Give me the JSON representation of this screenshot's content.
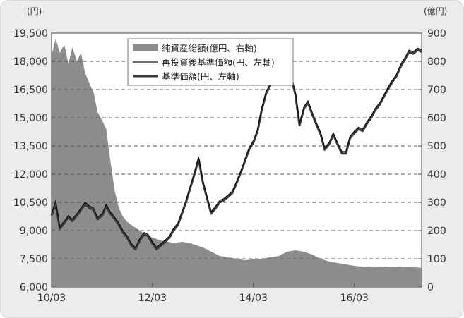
{
  "chart_data": {
    "type": "area+line",
    "title": "",
    "left_axis": {
      "unit": "(円)",
      "ticks": [
        6000,
        7500,
        9000,
        10500,
        12000,
        13500,
        15000,
        16500,
        18000,
        19500
      ],
      "tick_labels": [
        "6,000",
        "7,500",
        "9,000",
        "10,500",
        "12,000",
        "13,500",
        "15,000",
        "16,500",
        "18,000",
        "19,500"
      ],
      "range": [
        6000,
        19500
      ]
    },
    "right_axis": {
      "unit": "(億円)",
      "ticks": [
        0,
        100,
        200,
        300,
        400,
        500,
        600,
        700,
        800,
        900
      ],
      "tick_labels": [
        "0",
        "100",
        "200",
        "300",
        "400",
        "500",
        "600",
        "700",
        "800",
        "900"
      ],
      "range": [
        0,
        900
      ]
    },
    "x_axis": {
      "ticks": [
        2010.167,
        2012.167,
        2014.167,
        2016.167
      ],
      "tick_labels": [
        "10/03",
        "12/03",
        "14/03",
        "16/03"
      ],
      "range": [
        2010.167,
        2017.5
      ]
    },
    "grid": "horizontal dashed",
    "legend_position": "top-center",
    "series": [
      {
        "name": "純資産総額(億円、右軸)",
        "kind": "area",
        "axis": "right",
        "color": "#8c8c8c",
        "x": [
          2010.167,
          2010.25,
          2010.33,
          2010.42,
          2010.5,
          2010.58,
          2010.67,
          2010.75,
          2010.83,
          2010.92,
          2011.0,
          2011.08,
          2011.17,
          2011.25,
          2011.33,
          2011.42,
          2011.5,
          2011.58,
          2011.67,
          2011.75,
          2011.83,
          2011.92,
          2012.0,
          2012.08,
          2012.167,
          2012.25,
          2012.33,
          2012.42,
          2012.5,
          2012.58,
          2012.67,
          2012.75,
          2012.83,
          2012.92,
          2013.0,
          2013.17,
          2013.33,
          2013.5,
          2013.67,
          2013.83,
          2014.0,
          2014.17,
          2014.33,
          2014.5,
          2014.67,
          2014.83,
          2015.0,
          2015.17,
          2015.33,
          2015.5,
          2015.67,
          2015.83,
          2016.0,
          2016.17,
          2016.33,
          2016.5,
          2016.67,
          2016.83,
          2017.0,
          2017.17,
          2017.33,
          2017.5
        ],
        "values": [
          820,
          880,
          830,
          860,
          790,
          850,
          800,
          830,
          760,
          720,
          690,
          620,
          590,
          560,
          450,
          340,
          280,
          250,
          230,
          220,
          210,
          200,
          190,
          185,
          175,
          170,
          165,
          160,
          160,
          155,
          158,
          160,
          158,
          155,
          150,
          140,
          125,
          110,
          105,
          100,
          95,
          98,
          100,
          105,
          110,
          125,
          130,
          125,
          115,
          100,
          90,
          85,
          80,
          75,
          72,
          70,
          72,
          70,
          70,
          72,
          70,
          68
        ]
      },
      {
        "name": "再投資後基準価額(円、左軸)",
        "kind": "line",
        "axis": "left",
        "color": "#111111",
        "x": [
          2010.167,
          2010.25,
          2010.33,
          2010.42,
          2010.5,
          2010.58,
          2010.67,
          2010.75,
          2010.83,
          2010.92,
          2011.0,
          2011.08,
          2011.17,
          2011.25,
          2011.33,
          2011.42,
          2011.5,
          2011.58,
          2011.67,
          2011.75,
          2011.83,
          2011.92,
          2012.0,
          2012.08,
          2012.167,
          2012.25,
          2012.33,
          2012.42,
          2012.5,
          2012.58,
          2012.67,
          2012.75,
          2012.83,
          2012.92,
          2013.0,
          2013.08,
          2013.17,
          2013.25,
          2013.33,
          2013.42,
          2013.5,
          2013.58,
          2013.67,
          2013.75,
          2013.83,
          2013.92,
          2014.0,
          2014.08,
          2014.17,
          2014.25,
          2014.33,
          2014.42,
          2014.5,
          2014.58,
          2014.67,
          2014.75,
          2014.83,
          2014.92,
          2015.0,
          2015.08,
          2015.17,
          2015.25,
          2015.33,
          2015.42,
          2015.5,
          2015.58,
          2015.67,
          2015.75,
          2015.83,
          2015.92,
          2016.0,
          2016.08,
          2016.17,
          2016.25,
          2016.33,
          2016.42,
          2016.5,
          2016.58,
          2016.67,
          2016.75,
          2016.83,
          2016.92,
          2017.0,
          2017.08,
          2017.17,
          2017.25,
          2017.33,
          2017.42,
          2017.5
        ],
        "values": [
          9900,
          10600,
          9200,
          9500,
          9800,
          9600,
          9900,
          10200,
          10500,
          10300,
          10200,
          9700,
          9900,
          10400,
          10000,
          9700,
          9400,
          9000,
          8700,
          8300,
          8100,
          8600,
          8900,
          8800,
          8400,
          8100,
          8300,
          8500,
          8700,
          9100,
          9400,
          10000,
          10600,
          11400,
          12100,
          12900,
          11600,
          10800,
          10000,
          10300,
          10600,
          10700,
          10900,
          11100,
          11600,
          12200,
          12800,
          13400,
          13800,
          14400,
          15500,
          16400,
          16800,
          17200,
          17300,
          17800,
          17600,
          17200,
          16300,
          14700,
          15600,
          15900,
          15300,
          14700,
          14200,
          13400,
          13700,
          14200,
          13700,
          13200,
          13200,
          14000,
          14300,
          14500,
          14400,
          14800,
          15100,
          15500,
          15800,
          16200,
          16600,
          17000,
          17300,
          17800,
          18200,
          18600,
          18500,
          18700,
          18600
        ]
      },
      {
        "name": "基準価額(円、左軸)",
        "kind": "line",
        "axis": "left",
        "color": "#3a3a3a",
        "x": [
          2010.167,
          2010.25,
          2010.33,
          2010.42,
          2010.5,
          2010.58,
          2010.67,
          2010.75,
          2010.83,
          2010.92,
          2011.0,
          2011.08,
          2011.17,
          2011.25,
          2011.33,
          2011.42,
          2011.5,
          2011.58,
          2011.67,
          2011.75,
          2011.83,
          2011.92,
          2012.0,
          2012.08,
          2012.167,
          2012.25,
          2012.33,
          2012.42,
          2012.5,
          2012.58,
          2012.67,
          2012.75,
          2012.83,
          2012.92,
          2013.0,
          2013.08,
          2013.17,
          2013.25,
          2013.33,
          2013.42,
          2013.5,
          2013.58,
          2013.67,
          2013.75,
          2013.83,
          2013.92,
          2014.0,
          2014.08,
          2014.17,
          2014.25,
          2014.33,
          2014.42,
          2014.5,
          2014.58,
          2014.67,
          2014.75,
          2014.83,
          2014.92,
          2015.0,
          2015.08,
          2015.17,
          2015.25,
          2015.33,
          2015.42,
          2015.5,
          2015.58,
          2015.67,
          2015.75,
          2015.83,
          2015.92,
          2016.0,
          2016.08,
          2016.17,
          2016.25,
          2016.33,
          2016.42,
          2016.5,
          2016.58,
          2016.67,
          2016.75,
          2016.83,
          2016.92,
          2017.0,
          2017.08,
          2017.17,
          2017.25,
          2017.33,
          2017.42,
          2017.5
        ],
        "values": [
          9800,
          10400,
          9100,
          9400,
          9700,
          9500,
          9800,
          10100,
          10400,
          10200,
          10100,
          9600,
          9800,
          10300,
          9900,
          9600,
          9300,
          8900,
          8600,
          8200,
          8000,
          8500,
          8800,
          8700,
          8300,
          8000,
          8200,
          8400,
          8600,
          9000,
          9300,
          9900,
          10500,
          11300,
          12000,
          12800,
          11500,
          10700,
          9900,
          10200,
          10500,
          10600,
          10800,
          11000,
          11500,
          12100,
          12700,
          13300,
          13700,
          14300,
          15400,
          16300,
          16700,
          17100,
          17200,
          17700,
          17500,
          17100,
          16200,
          14600,
          15500,
          15800,
          15200,
          14600,
          14100,
          13300,
          13600,
          14100,
          13600,
          13100,
          13100,
          13900,
          14200,
          14400,
          14300,
          14700,
          15000,
          15400,
          15700,
          16100,
          16500,
          16900,
          17200,
          17700,
          18100,
          18500,
          18400,
          18600,
          18500
        ]
      }
    ]
  }
}
